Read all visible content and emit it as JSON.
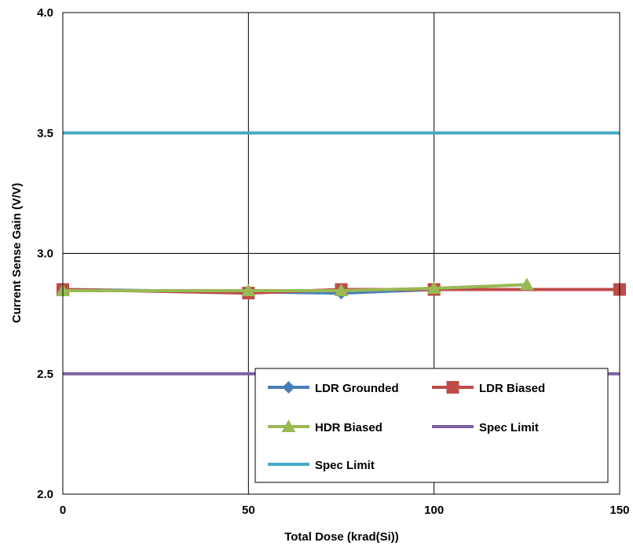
{
  "chart_data": {
    "type": "line",
    "title": "",
    "xlabel": "Total Dose (krad(Si))",
    "ylabel": "Current Sense Gain (V/V)",
    "xlim": [
      0,
      150
    ],
    "ylim": [
      2.0,
      4.0
    ],
    "x_ticks": [
      "0",
      "50",
      "100",
      "150"
    ],
    "y_ticks": [
      "2.0",
      "2.5",
      "3.0",
      "3.5",
      "4.0"
    ],
    "grid": true,
    "legend_position": "bottom-right",
    "series": [
      {
        "name": "LDR Grounded",
        "color": "#4a7ebb",
        "marker": "diamond",
        "x": [
          0,
          50,
          75,
          100,
          150
        ],
        "y": [
          2.85,
          2.84,
          2.835,
          2.85,
          2.85
        ]
      },
      {
        "name": "LDR Biased",
        "color": "#be4b48",
        "marker": "square",
        "x": [
          0,
          50,
          75,
          100,
          150
        ],
        "y": [
          2.85,
          2.835,
          2.85,
          2.85,
          2.85
        ]
      },
      {
        "name": "HDR Biased",
        "color": "#98b954",
        "marker": "triangle",
        "x": [
          0,
          50,
          75,
          100,
          125
        ],
        "y": [
          2.845,
          2.845,
          2.845,
          2.855,
          2.87
        ]
      },
      {
        "name": "Spec Limit",
        "color": "#7d60a0",
        "marker": "none",
        "x": [
          0,
          150
        ],
        "y": [
          2.5,
          2.5
        ]
      },
      {
        "name": "Spec Limit",
        "color": "#46aac5",
        "marker": "none",
        "x": [
          0,
          150
        ],
        "y": [
          3.5,
          3.5
        ]
      }
    ]
  }
}
